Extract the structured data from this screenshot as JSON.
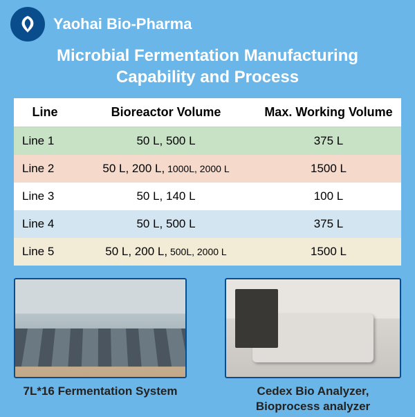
{
  "company": "Yaohai Bio-Pharma",
  "title_line1": "Microbial Fermentation Manufacturing",
  "title_line2": "Capability and Process",
  "table": {
    "columns": [
      "Line",
      "Bioreactor Volume",
      "Max. Working Volume"
    ],
    "rows": [
      {
        "line": "Line 1",
        "vol_a": "50 L, 500 L",
        "vol_b": "",
        "max": "375 L",
        "bg": "bg-green"
      },
      {
        "line": "Line 2",
        "vol_a": "50 L, 200 L,",
        "vol_b": "1000L, 2000 L",
        "max": "1500 L",
        "bg": "bg-orange"
      },
      {
        "line": "Line 3",
        "vol_a": "50 L, 140 L",
        "vol_b": "",
        "max": "100 L",
        "bg": "bg-white"
      },
      {
        "line": "Line 4",
        "vol_a": "50 L, 500 L",
        "vol_b": "",
        "max": "375 L",
        "bg": "bg-blue"
      },
      {
        "line": "Line 5",
        "vol_a": "50 L, 200 L,",
        "vol_b": "500L, 2000 L",
        "max": "1500 L",
        "bg": "bg-yellow"
      }
    ]
  },
  "photos": {
    "left_caption": "7L*16 Fermentation System",
    "right_caption_l1": "Cedex Bio Analyzer,",
    "right_caption_l2": "Bioprocess analyzer"
  },
  "colors": {
    "page_bg": "#6bb6e8",
    "logo_bg": "#0a4d8c",
    "text_white": "#ffffff"
  }
}
